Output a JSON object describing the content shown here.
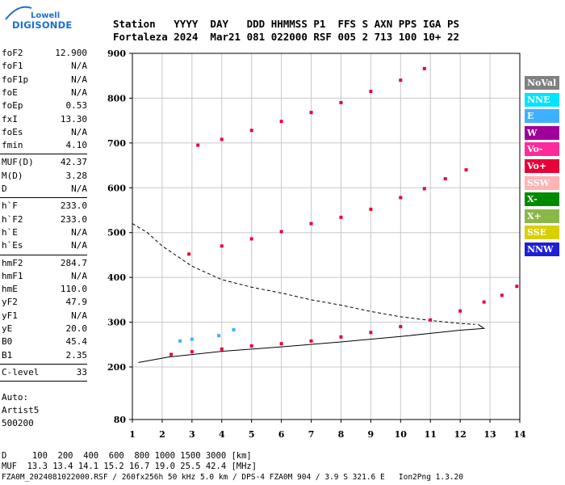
{
  "logo": {
    "brand_top": "Lowell",
    "brand_bottom": "DIGISONDE"
  },
  "header": {
    "row1": [
      "Station",
      "YYYY",
      "DAY",
      "DDD",
      "HHMMSS",
      "P1",
      "FFS",
      "S",
      "AXN",
      "PPS",
      "IGA",
      "PS"
    ],
    "row2": [
      "Fortaleza",
      "2024",
      "Mar21",
      "081",
      "022000",
      "RSF",
      "005",
      "2",
      "713",
      "100",
      "10+",
      "22"
    ]
  },
  "params": {
    "group1": [
      {
        "name": "foF2",
        "value": "12.900"
      },
      {
        "name": "foF1",
        "value": "N/A"
      },
      {
        "name": "foF1p",
        "value": "N/A"
      },
      {
        "name": "foE",
        "value": "N/A"
      },
      {
        "name": "foEp",
        "value": "0.53"
      },
      {
        "name": "fxI",
        "value": "13.30"
      },
      {
        "name": "foEs",
        "value": "N/A"
      },
      {
        "name": "fmin",
        "value": "4.10"
      }
    ],
    "group2": [
      {
        "name": "MUF(D)",
        "value": "42.37"
      },
      {
        "name": "M(D)",
        "value": "3.28"
      },
      {
        "name": "D",
        "value": "N/A"
      }
    ],
    "group3": [
      {
        "name": "h`F",
        "value": "233.0"
      },
      {
        "name": "h`F2",
        "value": "233.0"
      },
      {
        "name": "h`E",
        "value": "N/A"
      },
      {
        "name": "h`Es",
        "value": "N/A"
      }
    ],
    "group4": [
      {
        "name": "hmF2",
        "value": "284.7"
      },
      {
        "name": "hmF1",
        "value": "N/A"
      },
      {
        "name": "hmE",
        "value": "110.0"
      },
      {
        "name": "yF2",
        "value": "47.9"
      },
      {
        "name": "yF1",
        "value": "N/A"
      },
      {
        "name": "yE",
        "value": "20.0"
      },
      {
        "name": "B0",
        "value": "45.4"
      },
      {
        "name": "B1",
        "value": "2.35"
      }
    ],
    "group5": [
      {
        "name": "C-level",
        "value": "33"
      }
    ]
  },
  "auto": {
    "line1": "Auto:",
    "line2": "Artist5",
    "line3": "500200"
  },
  "legend": [
    {
      "label": "NoVal",
      "bg": "#808080",
      "fg": "#ffffff"
    },
    {
      "label": "NNE",
      "bg": "#00e5ff",
      "fg": "#ffffff"
    },
    {
      "label": "E",
      "bg": "#3fb0ff",
      "fg": "#ffffff"
    },
    {
      "label": "W",
      "bg": "#a0009a",
      "fg": "#ffffff"
    },
    {
      "label": "Vo-",
      "bg": "#ff2a9a",
      "fg": "#ffffff"
    },
    {
      "label": "Vo+",
      "bg": "#e8003a",
      "fg": "#ffffff"
    },
    {
      "label": "SSW",
      "bg": "#ffb3b3",
      "fg": "#ffffff"
    },
    {
      "label": "X-",
      "bg": "#008a00",
      "fg": "#ffffff"
    },
    {
      "label": "X+",
      "bg": "#8ab848",
      "fg": "#ffffff"
    },
    {
      "label": "SSE",
      "bg": "#d8d000",
      "fg": "#ffffff"
    },
    {
      "label": "NNW",
      "bg": "#1f1fd8",
      "fg": "#ffffff"
    }
  ],
  "footer": {
    "line1": "D     100  200  400  600  800 1000 1500 3000 [km]",
    "line2": "MUF  13.3 13.4 14.1 15.2 16.7 19.0 25.5 42.4 [MHz]",
    "line3": "FZA0M_2024081022000.RSF / 260fx256h 50 kHz 5.0 km / DPS-4 FZA0M 904 / 3.9 S 321.6 E   Ion2Png 1.3.20"
  },
  "chart_data": {
    "type": "scatter",
    "xlim": [
      1,
      14
    ],
    "ylim": [
      80,
      900
    ],
    "xticks": [
      "1",
      "2",
      "3",
      "4",
      "5",
      "6",
      "7",
      "8",
      "9",
      "10",
      "11",
      "12",
      "13",
      "14"
    ],
    "yticks": [
      "80",
      "200",
      "300",
      "400",
      "500",
      "600",
      "700",
      "800",
      "900"
    ],
    "grid": true,
    "series": [
      {
        "values": [
          [
            2.3,
            228
          ],
          [
            3,
            234
          ],
          [
            4,
            240
          ],
          [
            5,
            247
          ],
          [
            6,
            252
          ],
          [
            7,
            258
          ],
          [
            8,
            267
          ],
          [
            9,
            277
          ],
          [
            10,
            290
          ],
          [
            11,
            305
          ],
          [
            12,
            325
          ],
          [
            12.8,
            345
          ],
          [
            13.4,
            360
          ],
          [
            13.9,
            380
          ]
        ],
        "color": "#e8003a"
      },
      {
        "values": [
          [
            2.9,
            452
          ],
          [
            4,
            470
          ],
          [
            5,
            486
          ],
          [
            6,
            502
          ],
          [
            7,
            520
          ],
          [
            8,
            534
          ],
          [
            9,
            552
          ],
          [
            10,
            578
          ],
          [
            10.8,
            598
          ],
          [
            11.5,
            620
          ],
          [
            12.2,
            640
          ]
        ],
        "color": "#e8003a"
      },
      {
        "values": [
          [
            3.2,
            695
          ],
          [
            4,
            708
          ],
          [
            5,
            728
          ],
          [
            6,
            748
          ],
          [
            7,
            768
          ],
          [
            8,
            790
          ],
          [
            9,
            815
          ],
          [
            10,
            840
          ],
          [
            10.8,
            866
          ]
        ],
        "color": "#e8003a"
      },
      {
        "values": [
          [
            2.6,
            258
          ],
          [
            3,
            262
          ],
          [
            3.9,
            270
          ],
          [
            4.4,
            283
          ]
        ],
        "color": "#3fb0ff"
      }
    ],
    "profile_solid": [
      [
        1.2,
        210
      ],
      [
        2.2,
        222
      ],
      [
        4,
        235
      ],
      [
        6,
        245
      ],
      [
        8,
        256
      ],
      [
        10,
        268
      ],
      [
        11,
        275
      ],
      [
        12,
        282
      ],
      [
        12.6,
        285
      ],
      [
        12.8,
        286
      ],
      [
        12.6,
        295
      ]
    ],
    "profile_dashed": [
      [
        1,
        520
      ],
      [
        1.5,
        500
      ],
      [
        2,
        470
      ],
      [
        3,
        425
      ],
      [
        4,
        395
      ],
      [
        5,
        378
      ],
      [
        6,
        365
      ],
      [
        7,
        350
      ],
      [
        8,
        338
      ],
      [
        9,
        324
      ],
      [
        10,
        312
      ],
      [
        11,
        304
      ],
      [
        12,
        297
      ],
      [
        12.5,
        295
      ]
    ]
  }
}
